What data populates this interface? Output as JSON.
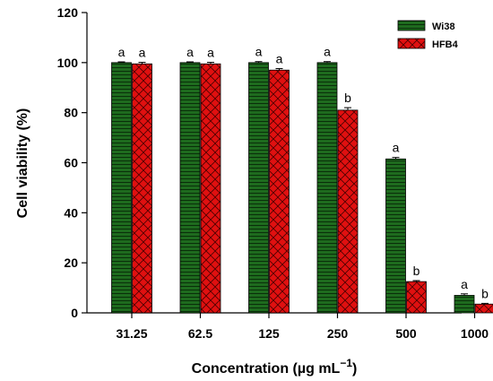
{
  "chart_data": {
    "type": "bar",
    "title": "",
    "xlabel": "Concentration (µg mL",
    "xlabel_superscript": "−1",
    "xlabel_suffix": ")",
    "ylabel": "Cell viability (%)",
    "ylim": [
      0,
      120
    ],
    "yticks": [
      "0",
      "20",
      "40",
      "60",
      "80",
      "100",
      "120"
    ],
    "categories": [
      "31.25",
      "62.5",
      "125",
      "250",
      "500",
      "1000"
    ],
    "series": [
      {
        "name": "Wi38",
        "values": [
          100,
          100,
          100,
          100,
          61.5,
          7
        ],
        "errors": [
          0.3,
          0.3,
          0.4,
          0.4,
          0.6,
          0.6
        ],
        "letters": [
          "a",
          "a",
          "a",
          "a",
          "a",
          "a"
        ],
        "color": "#1e6b1e",
        "pattern": "horizontal-lines"
      },
      {
        "name": "HFB4",
        "values": [
          99.5,
          99.5,
          97,
          81,
          12.5,
          3.5
        ],
        "errors": [
          0.6,
          0.6,
          0.6,
          1.0,
          0.4,
          0.3
        ],
        "letters": [
          "a",
          "a",
          "a",
          "b",
          "b",
          "b"
        ],
        "color": "#e01010",
        "pattern": "crosshatch"
      }
    ],
    "legend_position": "top-right",
    "grid": false
  }
}
